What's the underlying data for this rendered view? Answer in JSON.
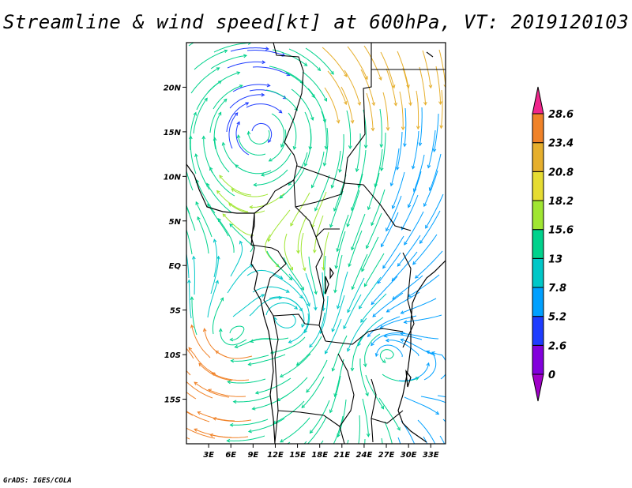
{
  "title": "Streamline & wind speed[kt] at 600hPa, VT: 2019120103",
  "credit": "GrADS: IGES/COLA",
  "map": {
    "lon_range": [
      0,
      35
    ],
    "lat_range": [
      -20,
      25
    ],
    "lat_ticks": [
      {
        "value": 20,
        "label": "20N"
      },
      {
        "value": 15,
        "label": "15N"
      },
      {
        "value": 10,
        "label": "10N"
      },
      {
        "value": 5,
        "label": "5N"
      },
      {
        "value": 0,
        "label": "EQ"
      },
      {
        "value": -5,
        "label": "5S"
      },
      {
        "value": -10,
        "label": "10S"
      },
      {
        "value": -15,
        "label": "15S"
      }
    ],
    "lon_ticks": [
      {
        "value": 3,
        "label": "3E"
      },
      {
        "value": 6,
        "label": "6E"
      },
      {
        "value": 9,
        "label": "9E"
      },
      {
        "value": 12,
        "label": "12E"
      },
      {
        "value": 15,
        "label": "15E"
      },
      {
        "value": 18,
        "label": "18E"
      },
      {
        "value": 21,
        "label": "21E"
      },
      {
        "value": 24,
        "label": "24E"
      },
      {
        "value": 27,
        "label": "27E"
      },
      {
        "value": 30,
        "label": "30E"
      },
      {
        "value": 33,
        "label": "33E"
      }
    ]
  },
  "colorbar": {
    "levels": [
      "0",
      "2.6",
      "5.2",
      "7.8",
      "13",
      "15.6",
      "18.2",
      "20.8",
      "23.4",
      "28.6"
    ],
    "colors": [
      "#a000c8",
      "#8200dc",
      "#1e3cff",
      "#00a0ff",
      "#00c8c8",
      "#00d28c",
      "#a0e632",
      "#e6dc32",
      "#e6af2d",
      "#f08228",
      "#f0268c"
    ]
  }
}
